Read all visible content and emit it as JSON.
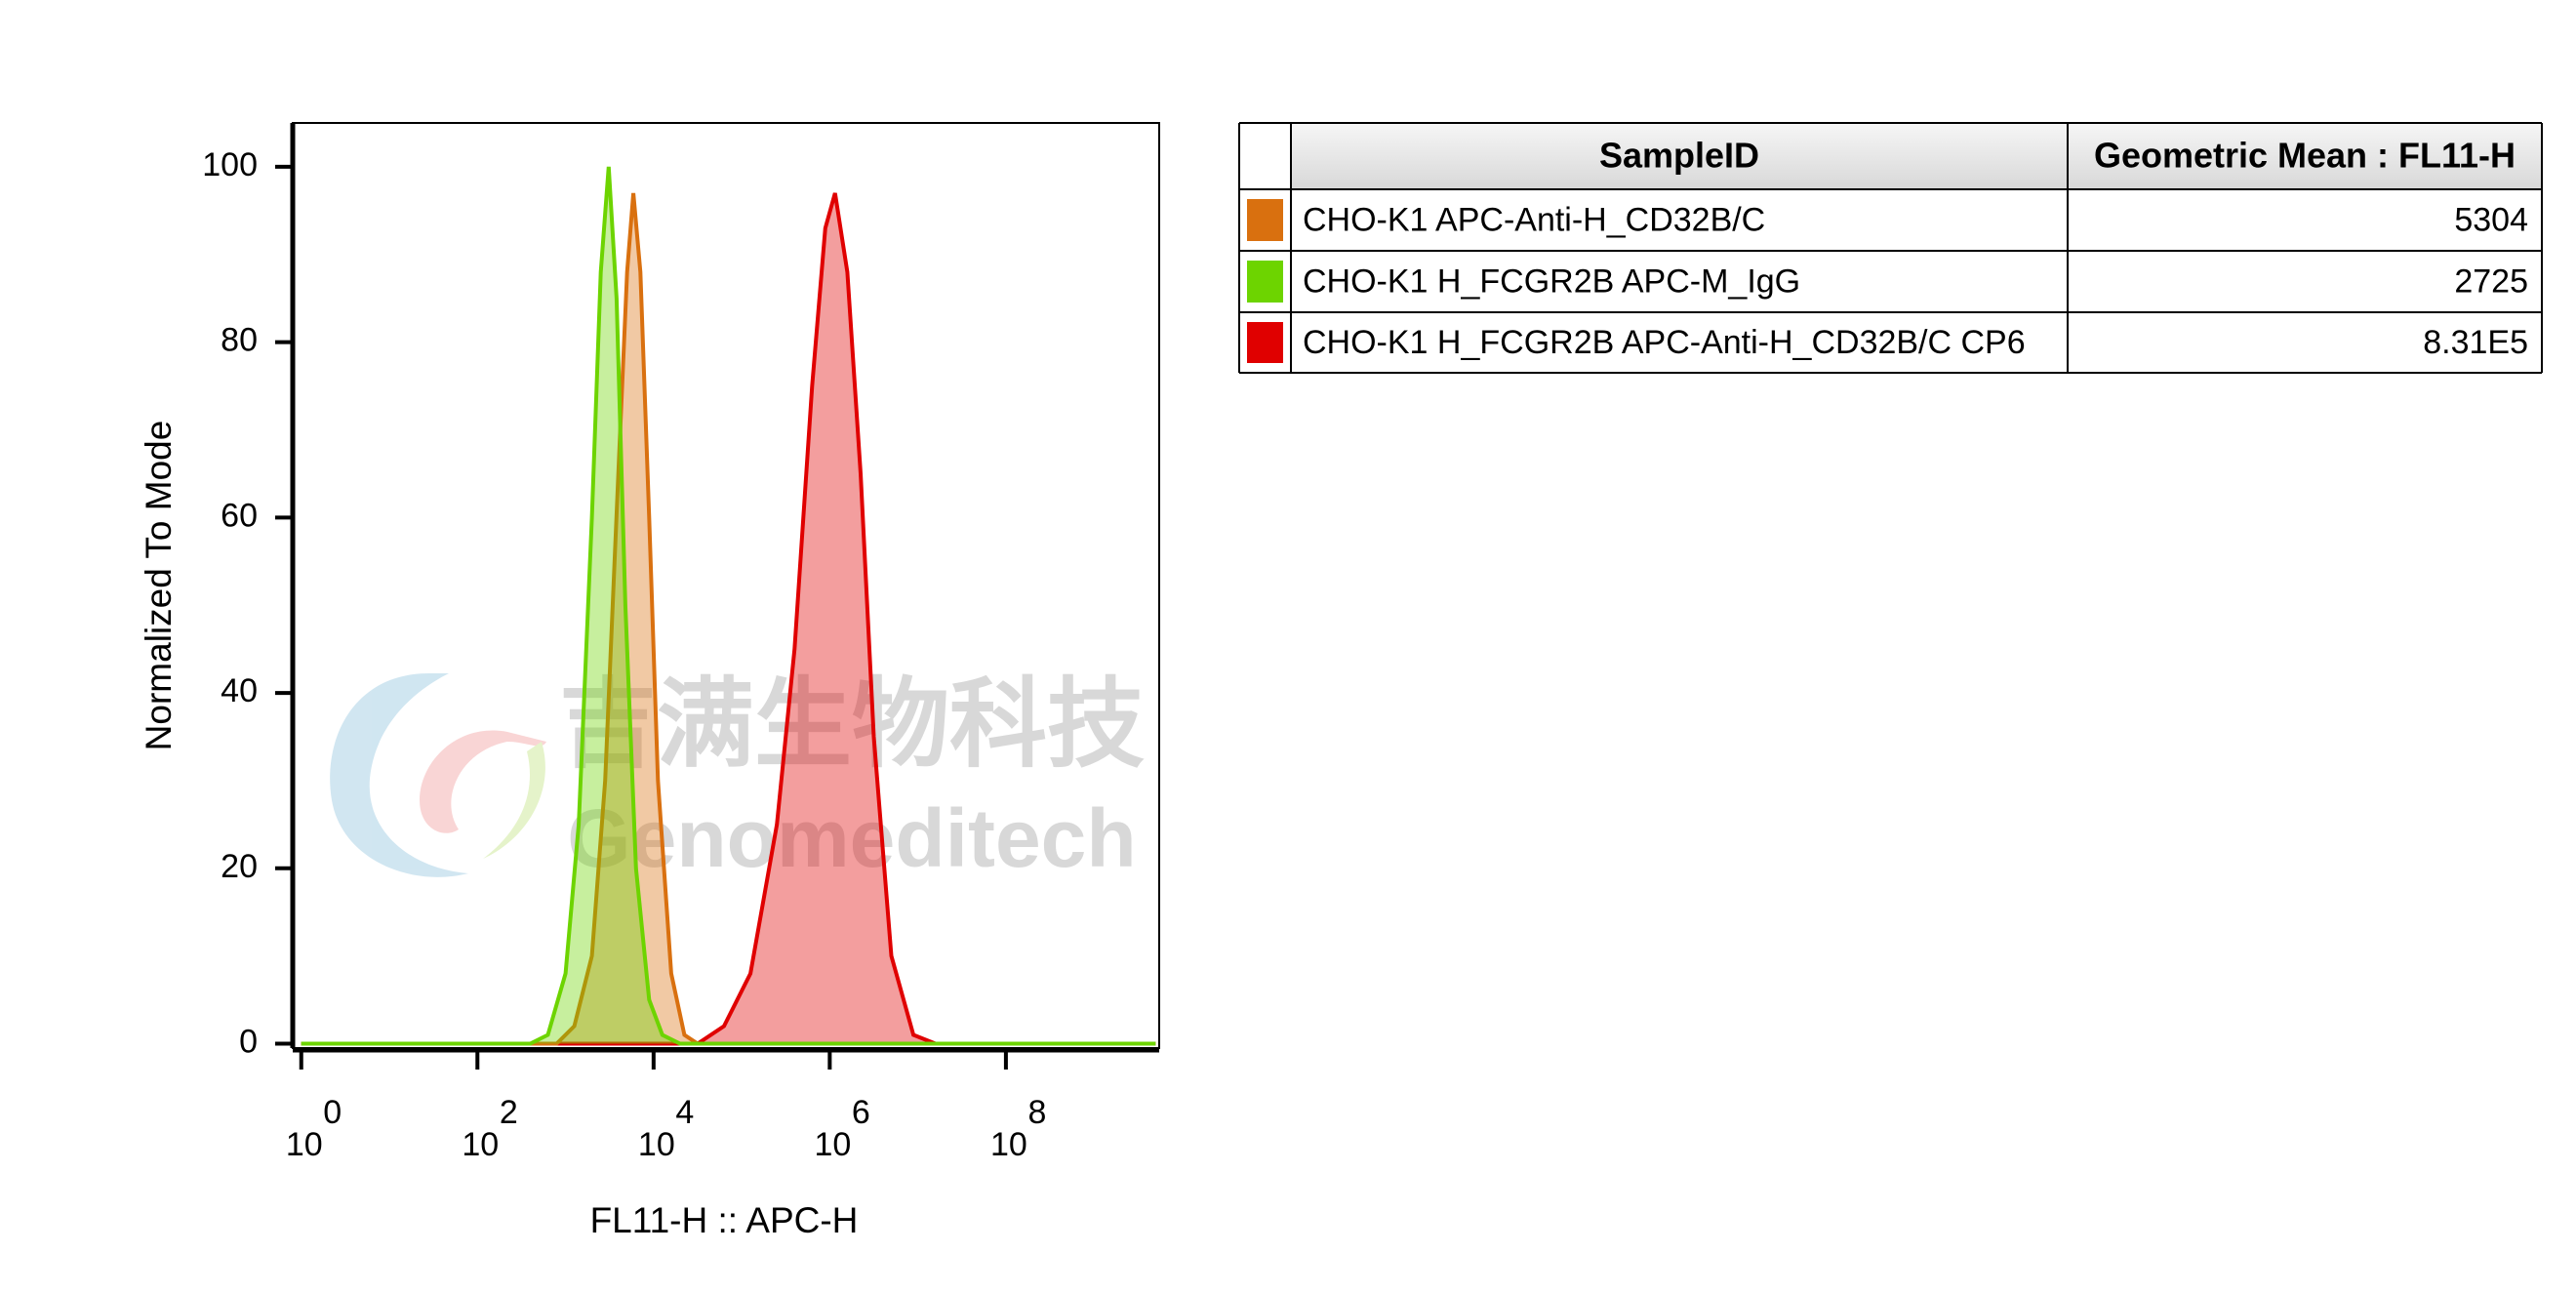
{
  "chart_data": {
    "type": "area",
    "x_label": "FL11-H :: APC-H",
    "y_label": "Normalized To Mode",
    "xlog": true,
    "xlim": [
      0.8,
      5500000000
    ],
    "xticks": [
      {
        "value": 1,
        "label": "10",
        "exponent": "0"
      },
      {
        "value": 100,
        "label": "10",
        "exponent": "2"
      },
      {
        "value": 10000,
        "label": "10",
        "exponent": "4"
      },
      {
        "value": 1000000,
        "label": "10",
        "exponent": "6"
      },
      {
        "value": 100000000,
        "label": "10",
        "exponent": "8"
      }
    ],
    "ylim": [
      -0.5,
      105
    ],
    "yticks": [
      0,
      20,
      40,
      60,
      80,
      100
    ],
    "table_columns": [
      "SampleID",
      "Geometric Mean : FL11-H"
    ],
    "watermark": [
      "吉满生物科技",
      "Genomeditech"
    ],
    "series": [
      {
        "name": "CHO-K1 APC-Anti-H_CD32B/C",
        "color": "#d9700f",
        "geometric_mean": 5304,
        "x": [
          1,
          794,
          1259,
          1995,
          2818,
          3981,
          5012,
          5888,
          7079,
          8913,
          11220,
          15849,
          22387,
          31623,
          5000000000
        ],
        "values": [
          0,
          0,
          2,
          10,
          30,
          65,
          88,
          97,
          88,
          60,
          30,
          8,
          1,
          0,
          0
        ]
      },
      {
        "name": "CHO-K1 H_FCGR2B APC-M_IgG",
        "color": "#6dd400",
        "geometric_mean": 2725,
        "x": [
          1,
          398,
          631,
          1000,
          1413,
          1995,
          2512,
          3090,
          3802,
          4786,
          6310,
          8913,
          12589,
          19953,
          5000000000
        ],
        "values": [
          0,
          0,
          1,
          8,
          25,
          60,
          88,
          100,
          85,
          50,
          20,
          5,
          1,
          0,
          0
        ]
      },
      {
        "name": "CHO-K1 H_FCGR2B APC-Anti-H_CD32B/C CP6",
        "color": "#e00000",
        "geometric_mean": 831000,
        "geometric_mean_label": "8.31E5",
        "x": [
          1,
          31623,
          63096,
          125893,
          251189,
          398107,
          630957,
          891251,
          1148154,
          1584893,
          2238721,
          3162278,
          5011872,
          8912509,
          15848932,
          5000000000
        ],
        "values": [
          0,
          0,
          2,
          8,
          25,
          45,
          75,
          93,
          97,
          88,
          65,
          35,
          10,
          1,
          0,
          0
        ]
      }
    ]
  }
}
